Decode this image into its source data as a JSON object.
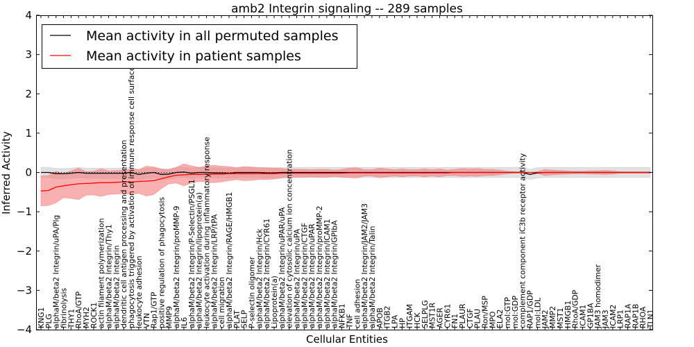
{
  "chart_data": {
    "type": "line",
    "title": "amb2 Integrin signaling -- 289 samples",
    "xlabel": "Cellular Entities",
    "ylabel": "Inferred Activity",
    "ylim": [
      -4,
      4
    ],
    "yticks": [
      "−4",
      "−3",
      "−2",
      "−1",
      "0",
      "1",
      "2",
      "3",
      "4"
    ],
    "ytick_values": [
      -4,
      -3,
      -2,
      -1,
      0,
      1,
      2,
      3,
      4
    ],
    "legend": {
      "placement": "top-left",
      "entries": [
        {
          "label": "Mean activity in all permuted samples",
          "color": "#000000"
        },
        {
          "label": "Mean activity in patient samples",
          "color": "#ff0000"
        }
      ]
    },
    "colors": {
      "patient": "#ff0000",
      "patient_band": "#f47c7c",
      "permuted": "#000000",
      "permuted_band": "#c8c8c8"
    },
    "categories": [
      "KNG1",
      "PLG",
      "alphaM/beta2 Integrin/uPA/Plg",
      "fibrinolysis",
      "THY1",
      "RhoA/GTP",
      "MYH2",
      "ROCK1",
      "actin filament polymerization",
      "alphaM/beta2 Integrin/Thy1",
      "alphaM/beta2 Integrin",
      "dendritic cell antigen processing and presentation",
      "phagocytosis triggered by activation of immune response cell surface",
      "leukocyte adhesion",
      "VTN",
      "Rap1/GTP",
      "positive regulation of phagocytosis",
      "MMP9",
      "alphaM/beta2 Integrin/proMMP-9",
      "IL6",
      "alphaM/beta2 Integrin/P-Selectin/PSGL1",
      "alphaM/beta2 Integrin/lipoprotein(a)",
      "leukocyte activation during inflammatory response",
      "alphaM/beta2 Integrin/LRP/tPA",
      "cell migration",
      "alphaM/beta2 Integrin/RAGE/HMGB1",
      "PLAT",
      "SELP",
      "P-selectin oligomer",
      "alphaM/beta2 Integrin/Hck",
      "alphaM/beta2 Integrin/CYR61",
      "Lipoprotein(a)",
      "alphaM/beta2 Integrin/uPAR/uPA",
      "elevation of cytosolic calcium ion concentration",
      "alphaM/beta2 Integrin/uPA",
      "alphaM/beta2 Integrin/CTGF",
      "alphaM/beta2 Integrin/uPAR",
      "alphaM/beta2 Integrin/proMMP-2",
      "alphaM/beta2 Integrin/ICAM1",
      "alphaM/beta2 Integrin/GPIbA",
      "NFKB1",
      "TNF",
      "cell adhesion",
      "alphaM/beta2 Integrin/JAM2/JAM3",
      "alphaM/beta2 Integrin/Talin",
      "APOB",
      "ITGB2",
      "LPA",
      "HP",
      "ITGAM",
      "HCK",
      "SELPLG",
      "MST1R",
      "AGER",
      "CYR61",
      "FN1",
      "PLAUR",
      "CTGF",
      "PLAU",
      "Ron/MSP",
      "MPO",
      "ELA2",
      "mol:GTP",
      "mol:GDP",
      "complement component iC3b receptor activity",
      "RAP1/GDP",
      "mol:LDL",
      "JAM2",
      "MMP2",
      "MST1",
      "HMGB1",
      "RhoA/GDP",
      "ICAM1",
      "GP1BA",
      "JAM3 homodimer",
      "JAM3",
      "ICAM2",
      "LRP1",
      "RAP1A",
      "RAP1B",
      "RHOA",
      "TLN1"
    ],
    "series": [
      {
        "name": "Mean activity in patient samples",
        "values": [
          -0.47,
          -0.46,
          -0.37,
          -0.34,
          -0.31,
          -0.29,
          -0.28,
          -0.27,
          -0.26,
          -0.26,
          -0.25,
          -0.24,
          -0.24,
          -0.23,
          -0.22,
          -0.21,
          -0.16,
          -0.11,
          -0.07,
          -0.06,
          -0.05,
          -0.05,
          -0.04,
          -0.04,
          -0.04,
          -0.03,
          -0.03,
          -0.03,
          -0.03,
          -0.03,
          -0.03,
          -0.03,
          -0.02,
          -0.02,
          -0.02,
          -0.02,
          -0.02,
          -0.02,
          -0.02,
          -0.02,
          -0.02,
          -0.01,
          -0.01,
          -0.01,
          -0.01,
          -0.01,
          -0.01,
          -0.01,
          -0.01,
          -0.01,
          -0.01,
          -0.01,
          -0.01,
          -0.01,
          -0.01,
          0,
          0,
          0,
          0,
          0,
          0,
          0,
          0,
          0,
          0,
          0,
          0,
          0,
          0,
          0,
          0,
          0,
          0,
          0,
          0,
          0,
          0,
          0,
          0,
          0,
          0,
          0
        ],
        "spread": [
          0.38,
          0.38,
          0.4,
          0.3,
          0.35,
          0.4,
          0.3,
          0.3,
          0.35,
          0.3,
          0.3,
          0.3,
          0.32,
          0.3,
          0.38,
          0.35,
          0.25,
          0.18,
          0.2,
          0.28,
          0.22,
          0.18,
          0.2,
          0.22,
          0.2,
          0.18,
          0.15,
          0.18,
          0.17,
          0.15,
          0.15,
          0.14,
          0.12,
          0.1,
          0.1,
          0.1,
          0.09,
          0.1,
          0.1,
          0.08,
          0.1,
          0.12,
          0.13,
          0.08,
          0.08,
          0.12,
          0.1,
          0.08,
          0.1,
          0.08,
          0.08,
          0.1,
          0.08,
          0.1,
          0.07,
          0.08,
          0.1,
          0.09,
          0.1,
          0.08,
          0.08,
          0.06,
          0.03,
          0.02,
          0.02,
          0,
          0.02,
          0.08,
          0.06,
          0.05,
          0.04,
          0.03,
          0.03,
          0.04,
          0.04,
          0.05,
          0.04,
          0.02,
          0.02,
          0.02,
          0.02,
          0.02
        ]
      },
      {
        "name": "Mean activity in all permuted samples",
        "values": [
          0,
          0,
          -0.03,
          -0.03,
          -0.02,
          0,
          -0.02,
          -0.02,
          -0.02,
          -0.02,
          -0.02,
          -0.02,
          0,
          -0.05,
          -0.02,
          0,
          -0.05,
          -0.04,
          0,
          0.01,
          -0.02,
          0,
          0,
          -0.01,
          -0.01,
          -0.02,
          0,
          0,
          0,
          0,
          -0.01,
          -0.01,
          0,
          0,
          0,
          0,
          0,
          0,
          0,
          0,
          0,
          0,
          0,
          0,
          0,
          0,
          0,
          0,
          0,
          0,
          0,
          0,
          0,
          0,
          0,
          0,
          0,
          0,
          0,
          0,
          0,
          0,
          0,
          0,
          0,
          -0.05,
          -0.01,
          0,
          0,
          0,
          0,
          0,
          0,
          0,
          0,
          0,
          0,
          0,
          0,
          0,
          0,
          0
        ],
        "spread": [
          0.13,
          0.13,
          0.13,
          0.13,
          0.13,
          0.13,
          0.13,
          0.13,
          0.13,
          0.13,
          0.13,
          0.13,
          0.13,
          0.13,
          0.13,
          0.13,
          0.13,
          0.13,
          0.13,
          0.13,
          0.13,
          0.13,
          0.13,
          0.13,
          0.13,
          0.13,
          0.13,
          0.13,
          0.13,
          0.13,
          0.13,
          0.13,
          0.13,
          0.13,
          0.13,
          0.13,
          0.13,
          0.13,
          0.13,
          0.13,
          0.13,
          0.13,
          0.13,
          0.13,
          0.13,
          0.13,
          0.13,
          0.13,
          0.13,
          0.13,
          0.13,
          0.13,
          0.13,
          0.13,
          0.13,
          0.13,
          0.13,
          0.13,
          0.13,
          0.13,
          0.13,
          0.13,
          0.13,
          0.13,
          0.13,
          0.13,
          0.13,
          0.13,
          0.13,
          0.13,
          0.13,
          0.13,
          0.13,
          0.13,
          0.13,
          0.13,
          0.13,
          0.13,
          0.13,
          0.13,
          0.13,
          0.13
        ]
      }
    ]
  }
}
